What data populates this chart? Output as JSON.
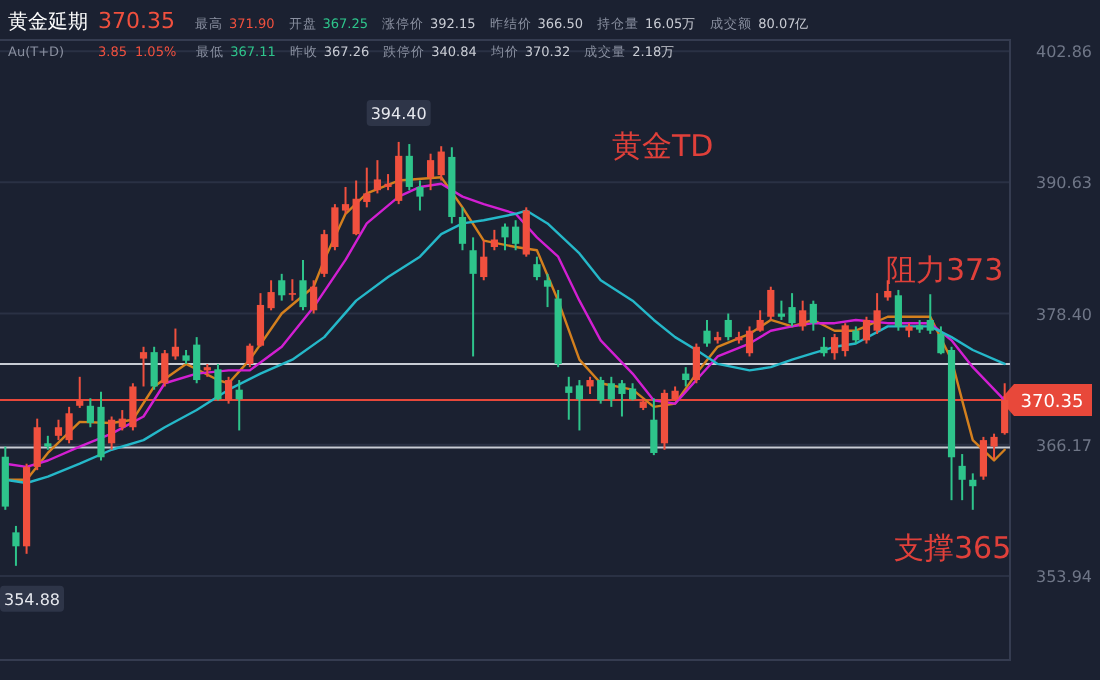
{
  "chart_data": {
    "type": "candlestick",
    "title": "黄金TD",
    "categories": [
      null,
      null,
      null,
      null,
      null,
      null,
      null,
      null,
      null,
      null,
      null,
      null,
      null,
      null,
      null,
      null,
      null,
      null,
      null,
      null,
      null,
      null,
      null,
      null,
      null,
      null,
      null,
      null,
      null,
      null,
      null,
      null,
      null,
      null,
      null,
      null,
      null,
      null,
      null,
      null,
      null,
      null,
      null,
      null,
      null,
      null,
      null,
      null,
      null,
      null,
      null,
      null,
      null,
      null,
      null,
      null,
      null,
      null,
      null,
      null,
      null,
      null,
      null,
      null,
      null,
      null,
      null,
      null,
      null,
      null,
      null,
      null,
      null,
      null,
      null,
      null,
      null,
      null,
      null,
      null,
      null,
      null,
      null,
      null,
      null,
      null,
      null,
      null,
      null,
      null,
      null,
      null,
      null,
      null,
      null
    ],
    "ohlc": [
      [
        365.05,
        366.0,
        360.1,
        360.4
      ],
      [
        358.0,
        358.6,
        354.88,
        356.7
      ],
      [
        356.7,
        364.4,
        356.0,
        364.1
      ],
      [
        364.1,
        368.6,
        363.8,
        367.8
      ],
      [
        366.3,
        367.0,
        365.7,
        366.0
      ],
      [
        367.0,
        368.5,
        366.6,
        367.8
      ],
      [
        366.6,
        369.7,
        366.3,
        369.1
      ],
      [
        369.8,
        372.5,
        369.6,
        370.3
      ],
      [
        369.8,
        370.5,
        367.8,
        368.2
      ],
      [
        369.7,
        371.1,
        364.7,
        365.0
      ],
      [
        366.3,
        368.8,
        365.7,
        368.5
      ],
      [
        367.8,
        369.4,
        367.5,
        368.6
      ],
      [
        367.8,
        371.9,
        367.5,
        371.6
      ],
      [
        374.2,
        375.3,
        371.6,
        374.8
      ],
      [
        374.8,
        375.3,
        371.3,
        371.6
      ],
      [
        371.9,
        375.0,
        371.6,
        374.7
      ],
      [
        374.4,
        377.0,
        374.1,
        375.3
      ],
      [
        374.5,
        375.0,
        373.7,
        374.0
      ],
      [
        375.5,
        376.2,
        371.9,
        372.2
      ],
      [
        373.1,
        373.7,
        372.5,
        373.4
      ],
      [
        373.2,
        373.7,
        370.3,
        370.4
      ],
      [
        370.3,
        372.5,
        370.0,
        372.2
      ],
      [
        371.3,
        372.2,
        367.5,
        370.4
      ],
      [
        373.7,
        375.6,
        373.4,
        375.4
      ],
      [
        375.4,
        380.3,
        375.3,
        379.2
      ],
      [
        378.9,
        381.5,
        378.7,
        380.4
      ],
      [
        381.5,
        382.1,
        379.6,
        380.1
      ],
      [
        380.2,
        381.6,
        379.6,
        380.3
      ],
      [
        381.5,
        383.4,
        378.7,
        379.0
      ],
      [
        378.7,
        381.5,
        378.4,
        380.9
      ],
      [
        382.1,
        386.2,
        381.8,
        385.8
      ],
      [
        384.6,
        388.6,
        384.3,
        388.3
      ],
      [
        388.0,
        390.2,
        387.7,
        388.6
      ],
      [
        385.8,
        390.8,
        385.7,
        389.1
      ],
      [
        388.8,
        392.0,
        388.3,
        389.6
      ],
      [
        389.9,
        392.7,
        389.6,
        390.9
      ],
      [
        390.2,
        391.4,
        389.9,
        390.5
      ],
      [
        388.9,
        394.4,
        388.6,
        393.1
      ],
      [
        393.1,
        394.2,
        389.9,
        390.2
      ],
      [
        390.2,
        390.8,
        388.0,
        389.3
      ],
      [
        391.1,
        393.3,
        389.9,
        392.7
      ],
      [
        391.3,
        394.0,
        390.8,
        393.5
      ],
      [
        393.0,
        393.9,
        386.8,
        387.4
      ],
      [
        387.4,
        388.3,
        384.3,
        384.9
      ],
      [
        384.3,
        385.5,
        374.4,
        382.1
      ],
      [
        381.8,
        385.2,
        381.5,
        383.7
      ],
      [
        384.6,
        386.2,
        384.3,
        385.3
      ],
      [
        386.5,
        386.8,
        384.3,
        385.5
      ],
      [
        386.5,
        387.1,
        384.3,
        384.9
      ],
      [
        383.9,
        388.3,
        383.7,
        388.0
      ],
      [
        383.0,
        383.7,
        381.5,
        381.8
      ],
      [
        381.5,
        382.1,
        379.0,
        380.9
      ],
      [
        379.8,
        380.6,
        373.4,
        373.7
      ],
      [
        371.6,
        372.5,
        368.5,
        371.0
      ],
      [
        371.7,
        372.2,
        367.5,
        370.4
      ],
      [
        371.6,
        372.5,
        370.9,
        372.2
      ],
      [
        372.2,
        372.5,
        370.0,
        370.3
      ],
      [
        371.9,
        372.5,
        369.7,
        370.4
      ],
      [
        371.9,
        372.2,
        368.8,
        370.9
      ],
      [
        371.4,
        371.9,
        370.3,
        370.4
      ],
      [
        369.6,
        370.5,
        369.4,
        370.2
      ],
      [
        368.5,
        370.5,
        365.2,
        365.4
      ],
      [
        366.3,
        371.3,
        365.7,
        371.0
      ],
      [
        370.4,
        371.6,
        370.3,
        371.2
      ],
      [
        372.8,
        373.4,
        371.6,
        372.2
      ],
      [
        372.2,
        375.6,
        371.9,
        375.3
      ],
      [
        376.8,
        377.8,
        375.3,
        375.6
      ],
      [
        375.9,
        376.7,
        375.6,
        376.2
      ],
      [
        377.8,
        378.4,
        375.9,
        376.2
      ],
      [
        375.9,
        376.7,
        375.6,
        376.2
      ],
      [
        374.7,
        377.2,
        374.4,
        376.8
      ],
      [
        376.8,
        378.7,
        376.7,
        377.8
      ],
      [
        378.1,
        380.9,
        377.8,
        380.6
      ],
      [
        378.4,
        379.6,
        377.8,
        378.1
      ],
      [
        379.0,
        380.3,
        377.2,
        377.5
      ],
      [
        377.2,
        379.6,
        376.8,
        378.7
      ],
      [
        379.3,
        379.6,
        376.8,
        377.5
      ],
      [
        375.3,
        376.2,
        374.4,
        374.7
      ],
      [
        374.7,
        376.5,
        374.1,
        376.2
      ],
      [
        374.9,
        377.5,
        374.4,
        377.3
      ],
      [
        376.8,
        377.2,
        375.6,
        375.9
      ],
      [
        375.9,
        378.1,
        375.6,
        377.8
      ],
      [
        376.8,
        380.3,
        376.5,
        378.7
      ],
      [
        379.9,
        381.5,
        379.6,
        380.5
      ],
      [
        380.1,
        380.6,
        376.8,
        377.2
      ],
      [
        376.8,
        377.5,
        376.2,
        377.2
      ],
      [
        377.3,
        377.8,
        376.6,
        376.9
      ],
      [
        377.8,
        380.2,
        376.5,
        376.8
      ],
      [
        376.5,
        377.2,
        374.6,
        374.7
      ],
      [
        375.0,
        375.3,
        361.0,
        365.0
      ],
      [
        364.2,
        365.3,
        361.0,
        362.9
      ],
      [
        362.9,
        363.5,
        360.1,
        362.3
      ],
      [
        363.2,
        366.9,
        362.9,
        366.6
      ],
      [
        366.0,
        367.2,
        364.8,
        366.9
      ],
      [
        367.25,
        371.9,
        367.11,
        370.35
      ]
    ],
    "series": [
      {
        "type": "line",
        "color": "#d4801e",
        "values": [
          362.9,
          null,
          362.9,
          null,
          365.4,
          null,
          null,
          368.3,
          null,
          null,
          368.2,
          null,
          368.5,
          null,
          371.6,
          null,
          null,
          373.7,
          null,
          null,
          372.2,
          371.9,
          null,
          374.1,
          null,
          null,
          378.4,
          null,
          null,
          380.9,
          383.4,
          null,
          387.7,
          null,
          389.6,
          null,
          null,
          390.8,
          null,
          null,
          null,
          391.1,
          null,
          388.3,
          null,
          385.2,
          null,
          null,
          384.6,
          null,
          384.3,
          null,
          379.6,
          null,
          374.1,
          null,
          371.9,
          null,
          null,
          371.3,
          null,
          369.7,
          null,
          370.0,
          null,
          372.8,
          null,
          375.3,
          null,
          null,
          376.5,
          null,
          377.8,
          null,
          377.2,
          null,
          377.8,
          null,
          376.8,
          null,
          376.8,
          null,
          null,
          378.1,
          null,
          null,
          null,
          378.1,
          null,
          374.1,
          370.3,
          366.6,
          null,
          364.7,
          365.7
        ]
      },
      {
        "type": "line",
        "color": "#d21fd2",
        "values": [
          364.4,
          null,
          364.1,
          null,
          364.7,
          null,
          null,
          366.0,
          null,
          null,
          367.2,
          null,
          null,
          368.8,
          null,
          371.9,
          null,
          null,
          372.8,
          null,
          null,
          373.1,
          null,
          373.1,
          null,
          null,
          375.3,
          null,
          null,
          379.0,
          null,
          null,
          383.4,
          null,
          386.8,
          null,
          null,
          389.3,
          null,
          390.2,
          null,
          390.5,
          null,
          389.3,
          null,
          388.6,
          null,
          null,
          387.7,
          null,
          385.5,
          null,
          383.7,
          null,
          379.6,
          null,
          375.9,
          null,
          null,
          372.8,
          null,
          370.3,
          null,
          370.0,
          null,
          372.2,
          null,
          374.4,
          null,
          null,
          375.6,
          null,
          376.8,
          null,
          377.2,
          null,
          377.5,
          null,
          377.5,
          null,
          377.8,
          null,
          null,
          377.5,
          null,
          null,
          null,
          377.5,
          null,
          375.9,
          null,
          373.4,
          null,
          null,
          370.3
        ]
      },
      {
        "type": "line",
        "color": "#25b8c9",
        "values": [
          362.9,
          null,
          362.6,
          null,
          363.2,
          null,
          null,
          364.4,
          null,
          null,
          365.7,
          null,
          null,
          366.6,
          null,
          367.8,
          null,
          null,
          369.4,
          null,
          null,
          371.3,
          null,
          null,
          372.8,
          null,
          null,
          374.1,
          null,
          null,
          376.2,
          null,
          null,
          379.6,
          null,
          null,
          381.8,
          null,
          null,
          383.7,
          null,
          385.8,
          null,
          386.8,
          null,
          387.1,
          null,
          null,
          387.7,
          388.0,
          null,
          386.8,
          null,
          null,
          384.0,
          null,
          381.5,
          null,
          null,
          379.6,
          null,
          377.8,
          null,
          376.2,
          null,
          375.0,
          null,
          373.7,
          null,
          null,
          373.1,
          null,
          373.4,
          null,
          374.1,
          null,
          374.7,
          null,
          375.3,
          null,
          375.6,
          null,
          null,
          377.2,
          null,
          null,
          null,
          377.2,
          null,
          376.2,
          null,
          375.0,
          null,
          null,
          373.7
        ]
      }
    ],
    "ylim": [
      346.1,
      403.9
    ],
    "yticks": [
      {
        "value": 353.94,
        "label": "353.94"
      },
      {
        "value": 366.17,
        "label": "366.17"
      },
      {
        "value": 378.4,
        "label": "378.40"
      },
      {
        "value": 390.63,
        "label": "390.63"
      },
      {
        "value": 402.86,
        "label": "402.86"
      }
    ],
    "grid": "y",
    "ref_lines": [
      {
        "axis": "y",
        "value": 373.7,
        "label": "阻力373",
        "color": "#c8ccd4"
      },
      {
        "axis": "y",
        "value": 370.35,
        "label": "370.35",
        "color": "#e8483a"
      },
      {
        "axis": "y",
        "value": 365.9,
        "label": "支撑365",
        "color": "#c8ccd4"
      }
    ],
    "annotations": [
      "黄金延期",
      "370.35",
      "最高",
      "371.90",
      "开盘",
      "367.25",
      "涨停价",
      "392.15",
      "昨结价",
      "366.50",
      "持仓量",
      "16.05万",
      "成交额",
      "80.07亿",
      "Au(T+D)",
      "3.85",
      "1.05%",
      "最低",
      "367.11",
      "昨收",
      "367.26",
      "跌停价",
      "340.84",
      "均价",
      "370.32",
      "成交量",
      "2.18万",
      "394.40",
      "354.88"
    ]
  }
}
